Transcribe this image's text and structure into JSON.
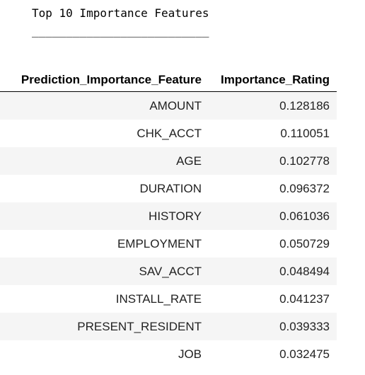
{
  "stdout": {
    "title": "Top 10 Importance Features",
    "rule": "__________________________"
  },
  "table": {
    "columns": [
      "Prediction_Importance_Feature",
      "Importance_Rating"
    ],
    "rows": [
      {
        "feature": "AMOUNT",
        "rating": "0.128186"
      },
      {
        "feature": "CHK_ACCT",
        "rating": "0.110051"
      },
      {
        "feature": "AGE",
        "rating": "0.102778"
      },
      {
        "feature": "DURATION",
        "rating": "0.096372"
      },
      {
        "feature": "HISTORY",
        "rating": "0.061036"
      },
      {
        "feature": "EMPLOYMENT",
        "rating": "0.050729"
      },
      {
        "feature": "SAV_ACCT",
        "rating": "0.048494"
      },
      {
        "feature": "INSTALL_RATE",
        "rating": "0.041237"
      },
      {
        "feature": "PRESENT_RESIDENT",
        "rating": "0.039333"
      },
      {
        "feature": "JOB",
        "rating": "0.032475"
      }
    ]
  }
}
